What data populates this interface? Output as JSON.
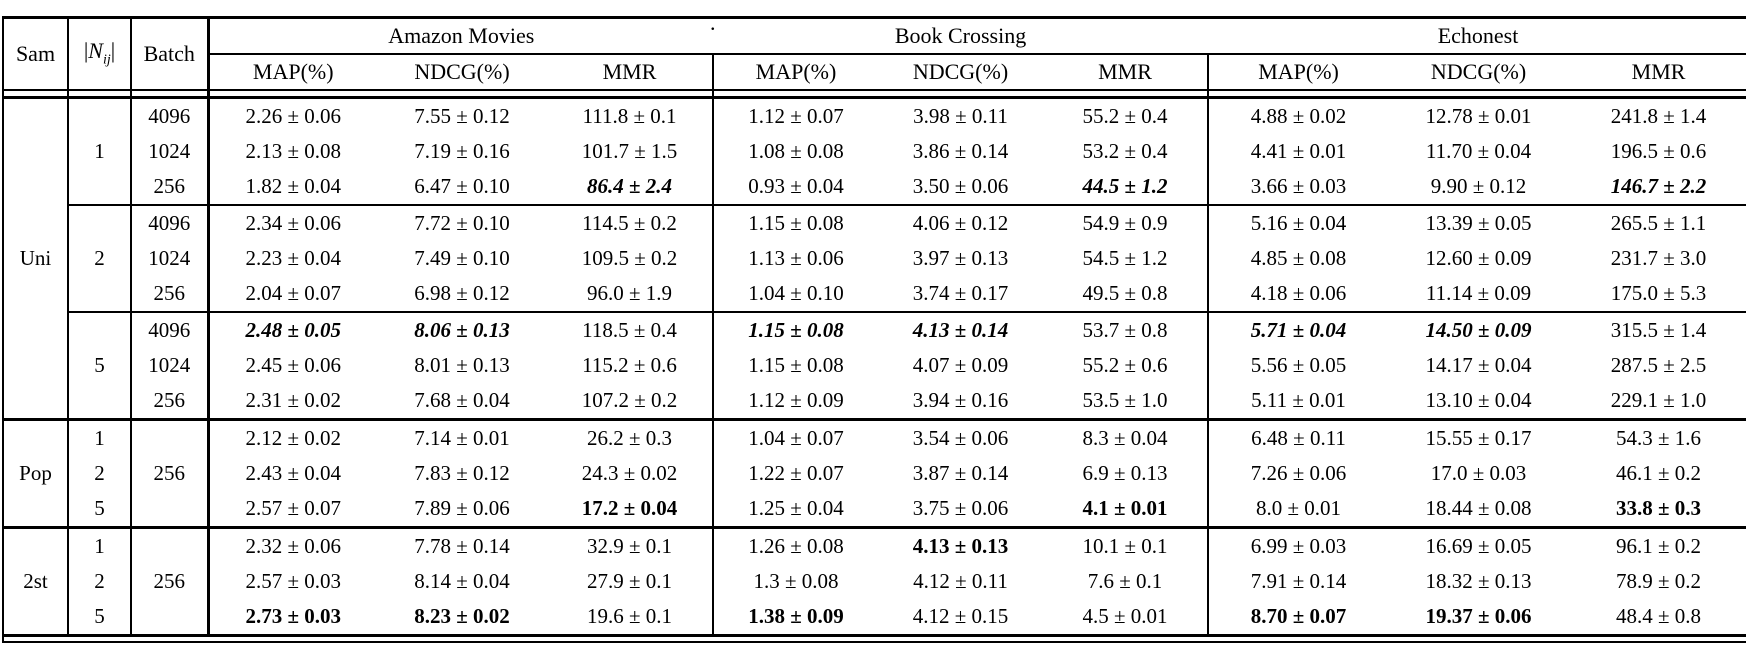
{
  "caption": {
    "dot": "."
  },
  "header": {
    "sam": "Sam",
    "nij": {
      "open": "|",
      "letter": "N",
      "sub": "ij",
      "close": "|"
    },
    "batch": "Batch",
    "groups": [
      {
        "name": "Amazon Movies",
        "metrics": [
          "MAP(%)",
          "NDCG(%)",
          "MMR"
        ]
      },
      {
        "name": "Book Crossing",
        "metrics": [
          "MAP(%)",
          "NDCG(%)",
          "MMR"
        ]
      },
      {
        "name": "Echonest",
        "metrics": [
          "MAP(%)",
          "NDCG(%)",
          "MMR"
        ]
      }
    ]
  },
  "rows": [
    {
      "sam": "Uni",
      "sam_span": 9,
      "n": "1",
      "n_span": 3,
      "batch": "4096",
      "values": [
        "2.26 ± 0.06",
        "7.55 ± 0.12",
        "111.8 ± 0.1",
        "1.12 ± 0.07",
        "3.98 ± 0.11",
        "55.2 ± 0.4",
        "4.88 ± 0.02",
        "12.78 ± 0.01",
        "241.8 ± 1.4"
      ]
    },
    {
      "batch": "1024",
      "values": [
        "2.13 ± 0.08",
        "7.19 ± 0.16",
        "101.7 ± 1.5",
        "1.08 ± 0.08",
        "3.86 ± 0.14",
        "53.2 ± 0.4",
        "4.41 ± 0.01",
        "11.70 ± 0.04",
        "196.5 ± 0.6"
      ]
    },
    {
      "batch": "256",
      "bolditalic": [
        2,
        5,
        8
      ],
      "values": [
        "1.82 ± 0.04",
        "6.47 ± 0.10",
        "86.4 ± 2.4",
        "0.93 ± 0.04",
        "3.50 ± 0.06",
        "44.5 ± 1.2",
        "3.66 ± 0.03",
        "9.90 ± 0.12",
        "146.7 ± 2.2"
      ]
    },
    {
      "n": "2",
      "n_span": 3,
      "batch": "4096",
      "rule": "thin",
      "values": [
        "2.34 ± 0.06",
        "7.72 ± 0.10",
        "114.5 ± 0.2",
        "1.15 ± 0.08",
        "4.06 ± 0.12",
        "54.9 ± 0.9",
        "5.16 ± 0.04",
        "13.39 ± 0.05",
        "265.5 ± 1.1"
      ]
    },
    {
      "batch": "1024",
      "values": [
        "2.23 ± 0.04",
        "7.49 ± 0.10",
        "109.5 ± 0.2",
        "1.13 ± 0.06",
        "3.97 ± 0.13",
        "54.5 ± 1.2",
        "4.85 ± 0.08",
        "12.60 ± 0.09",
        "231.7 ± 3.0"
      ]
    },
    {
      "batch": "256",
      "values": [
        "2.04 ± 0.07",
        "6.98 ± 0.12",
        "96.0 ± 1.9",
        "1.04 ± 0.10",
        "3.74 ± 0.17",
        "49.5 ± 0.8",
        "4.18 ± 0.06",
        "11.14 ± 0.09",
        "175.0 ± 5.3"
      ]
    },
    {
      "n": "5",
      "n_span": 3,
      "batch": "4096",
      "rule": "thin",
      "bolditalic": [
        0,
        1,
        3,
        4,
        6,
        7
      ],
      "values": [
        "2.48 ± 0.05",
        "8.06 ± 0.13",
        "118.5 ± 0.4",
        "1.15 ± 0.08",
        "4.13 ± 0.14",
        "53.7 ± 0.8",
        "5.71 ± 0.04",
        "14.50 ± 0.09",
        "315.5 ± 1.4"
      ]
    },
    {
      "batch": "1024",
      "values": [
        "2.45 ± 0.06",
        "8.01 ± 0.13",
        "115.2 ± 0.6",
        "1.15 ± 0.08",
        "4.07 ± 0.09",
        "55.2 ± 0.6",
        "5.56 ± 0.05",
        "14.17 ± 0.04",
        "287.5 ± 2.5"
      ]
    },
    {
      "batch": "256",
      "values": [
        "2.31 ± 0.02",
        "7.68 ± 0.04",
        "107.2 ± 0.2",
        "1.12 ± 0.09",
        "3.94 ± 0.16",
        "53.5 ± 1.0",
        "5.11 ± 0.01",
        "13.10 ± 0.04",
        "229.1 ± 1.0"
      ]
    },
    {
      "sam": "Pop",
      "sam_span": 3,
      "n": "1",
      "batch": "256",
      "batch_span": 3,
      "rule": "thick",
      "values": [
        "2.12 ± 0.02",
        "7.14 ± 0.01",
        "26.2 ± 0.3",
        "1.04 ± 0.07",
        "3.54 ± 0.06",
        "8.3 ± 0.04",
        "6.48 ± 0.11",
        "15.55 ± 0.17",
        "54.3 ± 1.6"
      ]
    },
    {
      "n": "2",
      "values": [
        "2.43 ± 0.04",
        "7.83 ± 0.12",
        "24.3 ± 0.02",
        "1.22 ± 0.07",
        "3.87 ± 0.14",
        "6.9 ± 0.13",
        "7.26 ± 0.06",
        "17.0 ± 0.03",
        "46.1 ± 0.2"
      ]
    },
    {
      "n": "5",
      "bold": [
        2,
        5,
        8
      ],
      "values": [
        "2.57 ± 0.07",
        "7.89 ± 0.06",
        "17.2 ± 0.04",
        "1.25 ± 0.04",
        "3.75 ± 0.06",
        "4.1 ± 0.01",
        "8.0 ± 0.01",
        "18.44 ± 0.08",
        "33.8 ± 0.3"
      ]
    },
    {
      "sam": "2st",
      "sam_span": 3,
      "n": "1",
      "batch": "256",
      "batch_span": 3,
      "rule": "thick",
      "bold": [
        4
      ],
      "values": [
        "2.32 ± 0.06",
        "7.78 ± 0.14",
        "32.9 ± 0.1",
        "1.26 ± 0.08",
        "4.13 ± 0.13",
        "10.1 ± 0.1",
        "6.99 ± 0.03",
        "16.69 ± 0.05",
        "96.1 ± 0.2"
      ]
    },
    {
      "n": "2",
      "values": [
        "2.57 ± 0.03",
        "8.14 ± 0.04",
        "27.9 ± 0.1",
        "1.3 ± 0.08",
        "4.12 ± 0.11",
        "7.6 ± 0.1",
        "7.91 ± 0.14",
        "18.32 ± 0.13",
        "78.9 ± 0.2"
      ]
    },
    {
      "n": "5",
      "bold": [
        0,
        1,
        3,
        6,
        7
      ],
      "values": [
        "2.73 ± 0.03",
        "8.23 ± 0.02",
        "19.6 ± 0.1",
        "1.38 ± 0.09",
        "4.12 ± 0.15",
        "4.5 ± 0.01",
        "8.70 ± 0.07",
        "19.37 ± 0.06",
        "48.4 ± 0.8"
      ]
    }
  ]
}
